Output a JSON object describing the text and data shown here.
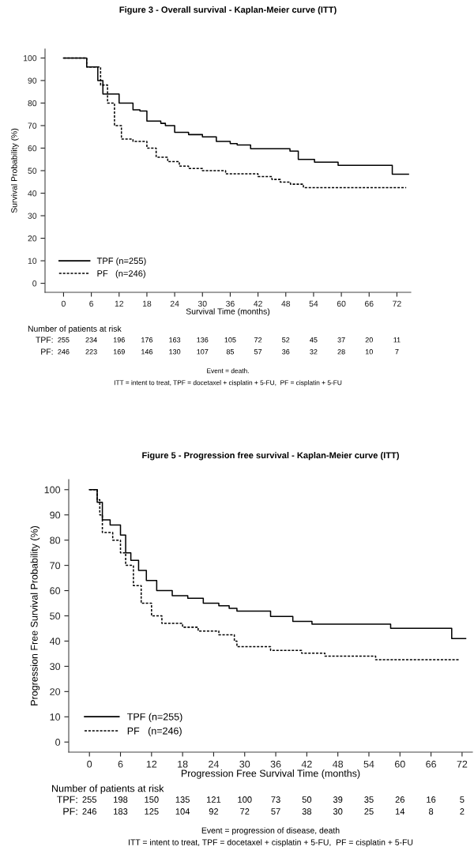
{
  "chart_data": [
    {
      "type": "step",
      "title": "Figure 3 - Overall survival - Kaplan-Meier curve (ITT)",
      "xlabel": "Survival Time (months)",
      "ylabel": "Survival Probability (%)",
      "xlim": [
        -4,
        75
      ],
      "ylim": [
        -4,
        104
      ],
      "xticks": [
        0,
        6,
        12,
        18,
        24,
        30,
        36,
        42,
        48,
        54,
        60,
        66,
        72
      ],
      "yticks": [
        0,
        10,
        20,
        30,
        40,
        50,
        60,
        70,
        80,
        90,
        100
      ],
      "grid": false,
      "legend": "bottom left",
      "series": [
        {
          "name": "TPF (n=255)",
          "color": "#000000",
          "line_style": "solid",
          "x": [
            0,
            5,
            7.4,
            8.5,
            12,
            15,
            16.5,
            18,
            21,
            22,
            24,
            27,
            30,
            33,
            36,
            37.5,
            40.4,
            48.9,
            50.7,
            54.2,
            59.3,
            71,
            74.5
          ],
          "values": [
            100,
            96,
            90,
            84,
            80,
            77,
            76.5,
            72,
            71,
            70,
            67,
            66,
            65,
            63,
            62,
            61.4,
            59.7,
            58.7,
            55,
            53.8,
            52.4,
            48.4,
            48.4
          ]
        },
        {
          "name": "PF   (n=246)",
          "color": "#000000",
          "line_style": "dashed",
          "x": [
            0,
            5,
            8,
            9.5,
            11,
            12.5,
            15,
            18,
            20,
            22.5,
            25,
            27,
            30,
            35,
            42,
            45,
            46.8,
            49,
            51.8,
            74
          ],
          "values": [
            100,
            96,
            88,
            80,
            70,
            64,
            63,
            60,
            56,
            54,
            52,
            51,
            50,
            48.6,
            47.4,
            46.1,
            44.9,
            44,
            42.5,
            42.5
          ]
        }
      ],
      "annotations": [
        "Number of patients at risk",
        "TPF:",
        "255",
        "234",
        "196",
        "176",
        "163",
        "136",
        "105",
        "72",
        "52",
        "45",
        "37",
        "20",
        "11",
        "PF:",
        "246",
        "223",
        "169",
        "146",
        "130",
        "107",
        "85",
        "57",
        "36",
        "32",
        "28",
        "10",
        "7",
        "Event = death.",
        "ITT = intent to treat, TPF = docetaxel + cisplatin + 5-FU,  PF = cisplatin + 5-FU"
      ]
    },
    {
      "type": "step",
      "title": "Figure 5 - Progression free survival - Kaplan-Meier curve (ITT)",
      "xlabel": "Progression Free Survival Time (months)",
      "ylabel": "Progression Free Survival Probability (%)",
      "xlim": [
        -4,
        74
      ],
      "ylim": [
        -4,
        104
      ],
      "xticks": [
        0,
        6,
        12,
        18,
        24,
        30,
        36,
        42,
        48,
        54,
        60,
        66,
        72
      ],
      "yticks": [
        0,
        10,
        20,
        30,
        40,
        50,
        60,
        70,
        80,
        90,
        100
      ],
      "grid": false,
      "legend": "bottom left",
      "series": [
        {
          "name": "TPF (n=255)",
          "color": "#000000",
          "line_style": "solid",
          "x": [
            0,
            1.5,
            2.5,
            4,
            6,
            7,
            8,
            9.5,
            11,
            13,
            16,
            19,
            22,
            25,
            27,
            28.5,
            35,
            39.3,
            43,
            58.2,
            70,
            72.7
          ],
          "values": [
            100,
            95,
            88,
            86,
            82,
            75,
            72,
            68,
            64,
            60,
            58,
            57,
            55,
            54,
            53,
            51.9,
            49.8,
            47.8,
            46.7,
            45.1,
            41,
            41
          ]
        },
        {
          "name": "PF   (n=246)",
          "color": "#000000",
          "line_style": "dashed",
          "x": [
            0,
            1.5,
            2,
            2.5,
            4.5,
            6,
            7,
            8.5,
            10,
            12,
            14,
            18,
            21,
            25,
            28,
            28.5,
            35,
            41,
            45.5,
            55.3,
            71.5
          ],
          "values": [
            100,
            96,
            90,
            83,
            80,
            75,
            70,
            62,
            55,
            50,
            47,
            45.5,
            44,
            42.5,
            40,
            37.8,
            36.3,
            35.2,
            34,
            32.6,
            32.6
          ]
        }
      ],
      "annotations": [
        "Number of patients at risk",
        "TPF:",
        "255",
        "198",
        "150",
        "135",
        "121",
        "100",
        "73",
        "50",
        "39",
        "35",
        "26",
        "16",
        "5",
        "PF:",
        "246",
        "183",
        "125",
        "104",
        "92",
        "72",
        "57",
        "38",
        "30",
        "25",
        "14",
        "8",
        "2",
        "Event = progression of disease, death",
        "ITT = intent to treat, TPF = docetaxel + cisplatin + 5-FU,  PF = cisplatin + 5-FU"
      ]
    }
  ]
}
